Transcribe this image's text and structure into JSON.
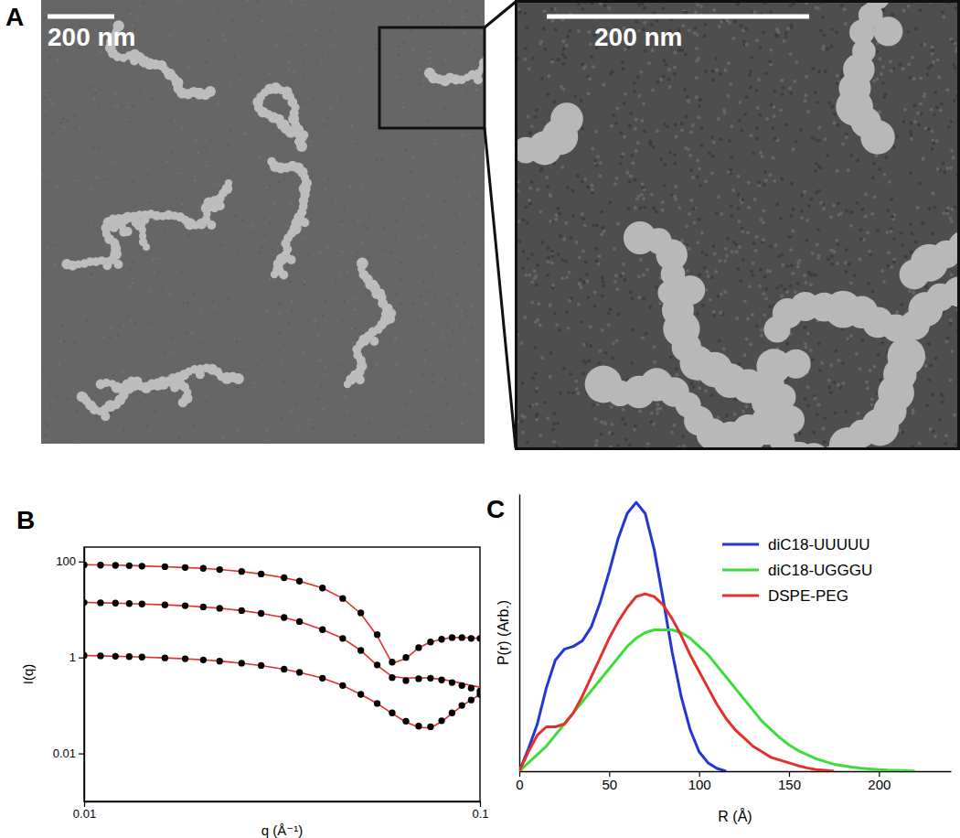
{
  "figure": {
    "panel_labels": [
      "A",
      "B",
      "C"
    ]
  },
  "micrograph": {
    "scale_bars": [
      "200 nm",
      "200 nm"
    ]
  },
  "chart_data": [
    {
      "type": "line",
      "x_label": "q (Å⁻¹)",
      "y_label": "I(q)",
      "log": true,
      "xlim": [
        0.01,
        0.1
      ],
      "ylim": [
        0.001,
        200
      ],
      "xticks": [
        0.01,
        0.1
      ],
      "yticks": [
        0.01,
        1,
        100
      ],
      "x": [
        0.01,
        0.011,
        0.012,
        0.013,
        0.014,
        0.016,
        0.018,
        0.02,
        0.022,
        0.025,
        0.028,
        0.032,
        0.035,
        0.04,
        0.045,
        0.05,
        0.055,
        0.06,
        0.065,
        0.07,
        0.075,
        0.08,
        0.085,
        0.09,
        0.095,
        0.1
      ],
      "series": [
        {
          "type": "scatter",
          "marker": "circle",
          "color": "#000000",
          "values": [
            85,
            84,
            83,
            82,
            80,
            78,
            75,
            72,
            68,
            62,
            55,
            46,
            39,
            28,
            17,
            8.5,
            3,
            0.8,
            1.0,
            1.6,
            2.1,
            2.4,
            2.6,
            2.6,
            2.5,
            2.5
          ]
        },
        {
          "type": "line",
          "color": "#e3302a",
          "values": [
            86,
            85,
            84,
            82.5,
            81,
            78,
            75,
            72,
            68,
            62,
            55,
            46,
            39,
            28,
            17,
            8.2,
            2.8,
            0.75,
            0.95,
            1.6,
            2.1,
            2.4,
            2.6,
            2.6,
            2.55,
            2.5
          ]
        },
        {
          "type": "scatter",
          "marker": "circle",
          "color": "#000000",
          "values": [
            14,
            13.8,
            13.6,
            13.3,
            13,
            12.5,
            12,
            11.3,
            10.6,
            9.5,
            8.3,
            6.8,
            5.6,
            3.8,
            2.5,
            1.4,
            0.7,
            0.38,
            0.33,
            0.36,
            0.37,
            0.34,
            0.3,
            0.26,
            0.23,
            0.2
          ]
        },
        {
          "type": "line",
          "color": "#e3302a",
          "values": [
            14,
            13.8,
            13.6,
            13.3,
            13,
            12.5,
            12,
            11.3,
            10.6,
            9.5,
            8.3,
            6.8,
            5.6,
            3.8,
            2.5,
            1.4,
            0.68,
            0.4,
            0.37,
            0.38,
            0.37,
            0.35,
            0.32,
            0.29,
            0.26,
            0.24
          ]
        },
        {
          "type": "scatter",
          "marker": "circle",
          "color": "#000000",
          "values": [
            1.1,
            1.08,
            1.06,
            1.04,
            1.02,
            0.98,
            0.94,
            0.89,
            0.84,
            0.76,
            0.68,
            0.57,
            0.49,
            0.37,
            0.26,
            0.17,
            0.11,
            0.07,
            0.047,
            0.037,
            0.036,
            0.048,
            0.07,
            0.1,
            0.13,
            0.17
          ]
        },
        {
          "type": "line",
          "color": "#e3302a",
          "values": [
            1.1,
            1.08,
            1.06,
            1.04,
            1.02,
            0.98,
            0.94,
            0.89,
            0.84,
            0.76,
            0.68,
            0.57,
            0.49,
            0.37,
            0.26,
            0.17,
            0.11,
            0.068,
            0.045,
            0.035,
            0.034,
            0.046,
            0.068,
            0.098,
            0.13,
            0.17
          ]
        }
      ]
    },
    {
      "type": "line",
      "x_label": "R (Å)",
      "y_label": "P(r) (Arb.)",
      "xlim": [
        0,
        240
      ],
      "ylim": [
        0,
        100
      ],
      "xticks": [
        0,
        50,
        100,
        150,
        200
      ],
      "tick_labels": "x",
      "legend": "upper right",
      "series": [
        {
          "name": "diC18-UUUUU",
          "color": "#2236d8",
          "x": [
            0,
            5,
            10,
            15,
            20,
            25,
            30,
            35,
            40,
            45,
            50,
            55,
            60,
            65,
            70,
            75,
            80,
            85,
            90,
            95,
            100,
            105,
            110,
            115
          ],
          "values": [
            0,
            8,
            17,
            30,
            40,
            44,
            45,
            47,
            52,
            61,
            72,
            84,
            93,
            97,
            93,
            80,
            62,
            43,
            27,
            15,
            7,
            3,
            1,
            0
          ]
        },
        {
          "name": "diC18-UGGGU",
          "color": "#3cdc3c",
          "x": [
            0,
            5,
            10,
            15,
            20,
            25,
            30,
            35,
            40,
            45,
            50,
            55,
            60,
            65,
            70,
            75,
            80,
            85,
            90,
            95,
            100,
            105,
            110,
            115,
            120,
            125,
            130,
            135,
            140,
            145,
            150,
            155,
            160,
            165,
            170,
            175,
            180,
            185,
            190,
            195,
            200,
            205,
            210,
            215,
            220
          ],
          "values": [
            0,
            3,
            6,
            9,
            13,
            17,
            21,
            25,
            29,
            33,
            37,
            41,
            45,
            48,
            50,
            51,
            51,
            51,
            50,
            48,
            45,
            42,
            38,
            34,
            30,
            26,
            22,
            18,
            15,
            12,
            9.5,
            7.5,
            6,
            4.5,
            3.5,
            2.5,
            2,
            1.5,
            1.1,
            0.8,
            0.6,
            0.4,
            0.3,
            0.2,
            0.1
          ]
        },
        {
          "name": "DSPE-PEG",
          "color": "#e3302a",
          "x": [
            0,
            5,
            10,
            15,
            20,
            25,
            30,
            35,
            40,
            45,
            50,
            55,
            60,
            65,
            70,
            75,
            80,
            85,
            90,
            95,
            100,
            105,
            110,
            115,
            120,
            125,
            130,
            135,
            140,
            145,
            150,
            155,
            160,
            165,
            170,
            175
          ],
          "values": [
            0,
            7,
            13,
            16,
            16,
            17,
            21,
            27,
            34,
            41,
            48,
            54,
            59,
            63,
            64,
            63,
            60,
            55,
            49,
            42,
            36,
            30,
            24,
            19,
            15,
            12,
            9,
            7,
            5,
            4,
            3,
            2,
            1.2,
            0.6,
            0.3,
            0
          ]
        }
      ]
    }
  ]
}
